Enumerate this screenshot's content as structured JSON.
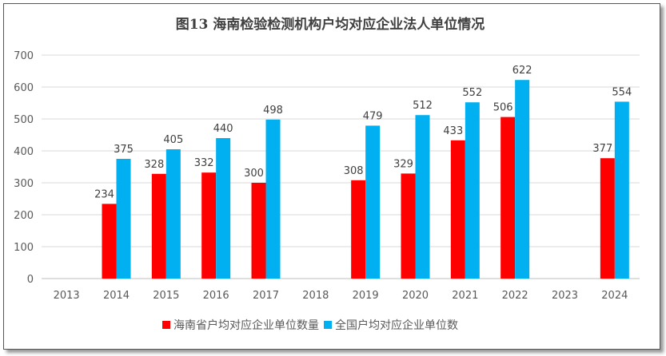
{
  "chart_data": {
    "type": "bar",
    "title": "图13 海南检验检测机构户均对应企业法人单位情况",
    "categories": [
      "2013",
      "2014",
      "2015",
      "2016",
      "2017",
      "2018",
      "2019",
      "2020",
      "2021",
      "2022",
      "2023",
      "2024"
    ],
    "series": [
      {
        "name": "海南省户均对应企业单位数量",
        "color": "#FF0000",
        "values": [
          null,
          234,
          328,
          332,
          300,
          null,
          308,
          329,
          433,
          506,
          null,
          377
        ]
      },
      {
        "name": "全国户均对应企业单位数",
        "color": "#00B0F0",
        "values": [
          null,
          375,
          405,
          440,
          498,
          null,
          479,
          512,
          552,
          622,
          null,
          554
        ]
      }
    ],
    "yticks": [
      0,
      100,
      200,
      300,
      400,
      500,
      600,
      700
    ],
    "ylim": [
      0,
      700
    ],
    "grid": true,
    "legend": "bottom",
    "xlabel": "",
    "ylabel": ""
  }
}
